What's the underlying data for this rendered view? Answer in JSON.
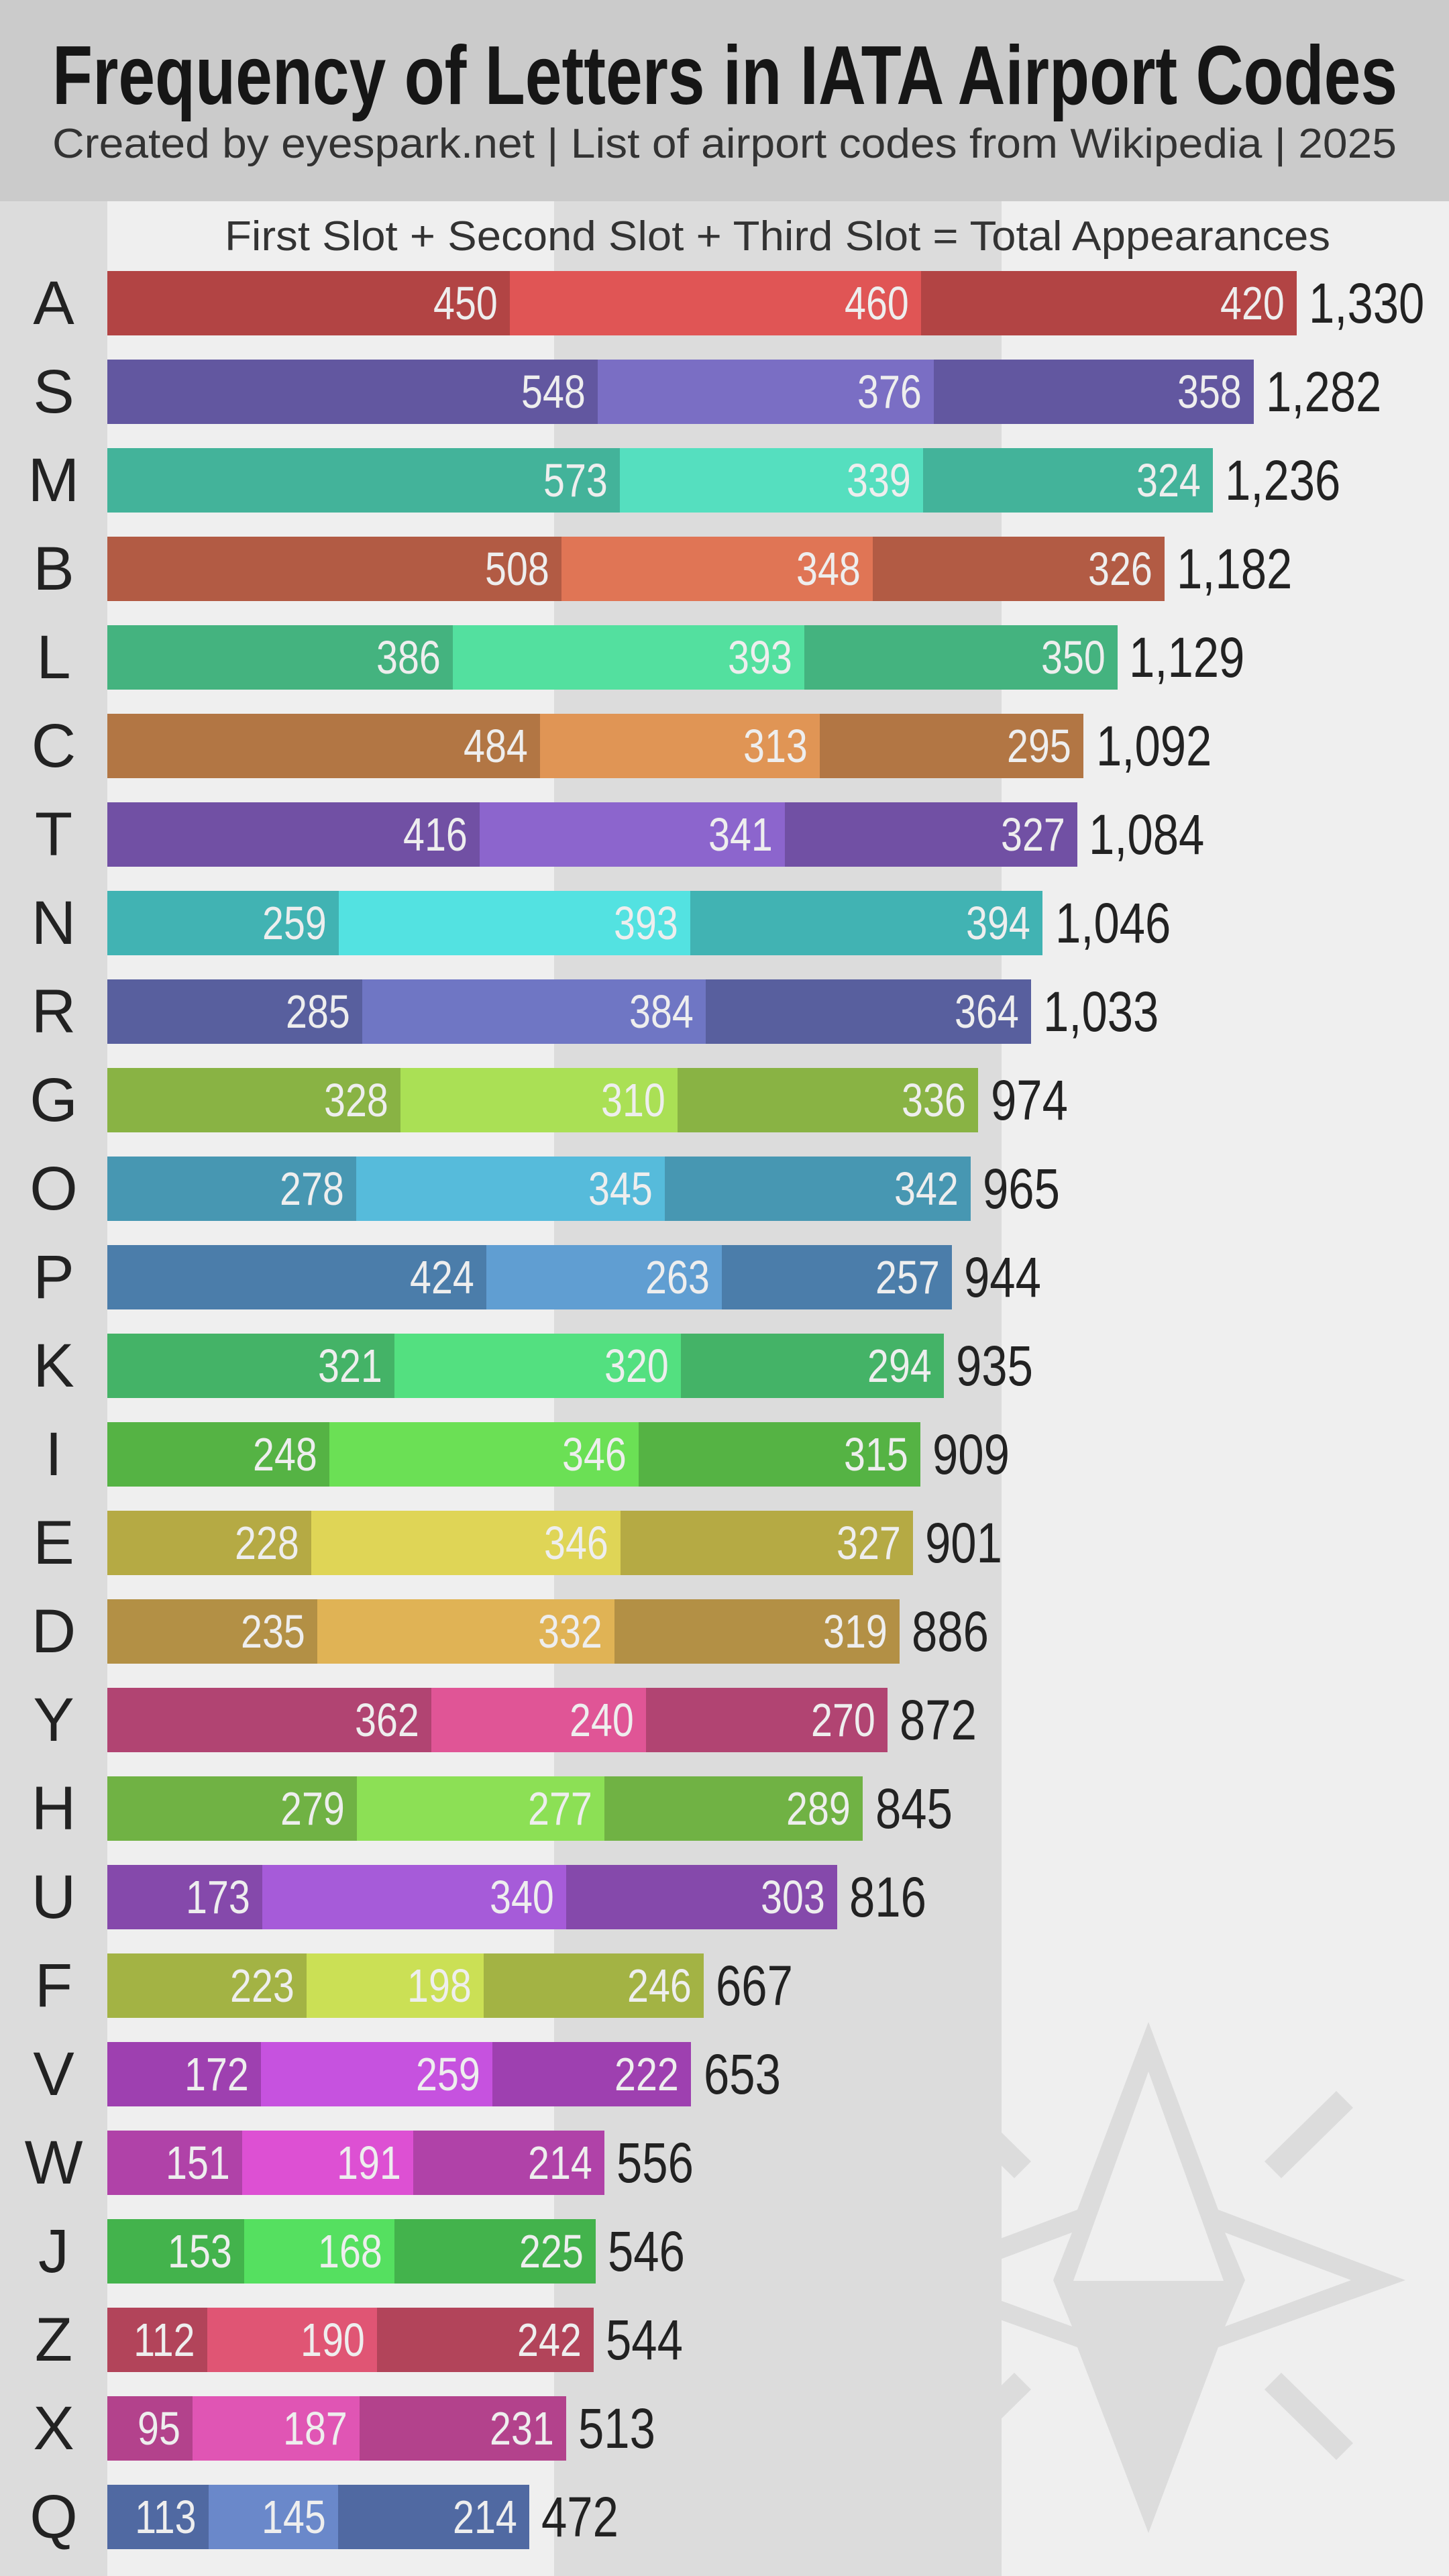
{
  "header": {
    "title": "Frequency of Letters in IATA Airport Codes",
    "subtitle": "Created by eyespark.net | List of airport codes from Wikipedia | 2025"
  },
  "legend": "First Slot + Second Slot + Third Slot = Total Appearances",
  "logo": "compass-star-icon",
  "chart_data": {
    "type": "bar",
    "orientation": "horizontal",
    "stacked": true,
    "title": "Frequency of Letters in IATA Airport Codes",
    "subtitle": "Created by eyespark.net | List of airport codes from Wikipedia | 2025",
    "legend_text": "First Slot + Second Slot + Third Slot = Total Appearances",
    "xlabel": "",
    "ylabel": "",
    "grid": false,
    "categories": [
      "A",
      "S",
      "M",
      "B",
      "L",
      "C",
      "T",
      "N",
      "R",
      "G",
      "O",
      "P",
      "K",
      "I",
      "E",
      "D",
      "Y",
      "H",
      "U",
      "F",
      "V",
      "W",
      "J",
      "Z",
      "X",
      "Q"
    ],
    "series": [
      {
        "name": "First Slot",
        "values": [
          450,
          548,
          573,
          508,
          386,
          484,
          416,
          259,
          285,
          328,
          278,
          424,
          321,
          248,
          228,
          235,
          362,
          279,
          173,
          223,
          172,
          151,
          153,
          112,
          95,
          113
        ]
      },
      {
        "name": "Second Slot",
        "values": [
          460,
          376,
          339,
          348,
          393,
          313,
          341,
          393,
          384,
          310,
          345,
          263,
          320,
          346,
          346,
          332,
          240,
          277,
          340,
          198,
          259,
          191,
          168,
          190,
          187,
          145
        ]
      },
      {
        "name": "Third Slot",
        "values": [
          420,
          358,
          324,
          326,
          350,
          295,
          327,
          394,
          364,
          336,
          342,
          257,
          294,
          315,
          327,
          319,
          270,
          289,
          303,
          246,
          222,
          214,
          225,
          242,
          231,
          214
        ]
      }
    ],
    "totals": [
      "1,330",
      "1,282",
      "1,236",
      "1,182",
      "1,129",
      "1,092",
      "1,084",
      "1,046",
      "1,033",
      "974",
      "965",
      "944",
      "935",
      "909",
      "901",
      "886",
      "872",
      "845",
      "816",
      "667",
      "653",
      "556",
      "546",
      "544",
      "513",
      "472"
    ],
    "colors": {
      "A": [
        "#b24444",
        "#e05555"
      ],
      "S": [
        "#6257a0",
        "#7a6ec4"
      ],
      "M": [
        "#43b39a",
        "#55dfbf"
      ],
      "B": [
        "#b25b44",
        "#e07555"
      ],
      "L": [
        "#44b37f",
        "#53e09f"
      ],
      "C": [
        "#b27644",
        "#e09555"
      ],
      "T": [
        "#7150a4",
        "#8c65cd"
      ],
      "N": [
        "#41b3b3",
        "#53e2e1"
      ],
      "R": [
        "#585f9e",
        "#6f76c4"
      ],
      "G": [
        "#89b344",
        "#aae055"
      ],
      "O": [
        "#4797b2",
        "#56bbdb"
      ],
      "P": [
        "#4b7daa",
        "#609ed2"
      ],
      "K": [
        "#44b367",
        "#53e080"
      ],
      "I": [
        "#55b344",
        "#6be055"
      ],
      "E": [
        "#b5aa44",
        "#dfd556"
      ],
      "D": [
        "#b39045",
        "#e0b355"
      ],
      "Y": [
        "#b14472",
        "#e05596"
      ],
      "H": [
        "#70b244",
        "#8ce055"
      ],
      "U": [
        "#8549ab",
        "#a65bd9"
      ],
      "F": [
        "#a3b344",
        "#cbe055"
      ],
      "V": [
        "#9e40b0",
        "#c652df"
      ],
      "W": [
        "#b042a8",
        "#dd50d3"
      ],
      "J": [
        "#43b34c",
        "#55e060"
      ],
      "Z": [
        "#b2445a",
        "#e05574"
      ],
      "X": [
        "#b3428c",
        "#e055b4"
      ],
      "Q": [
        "#5069a2",
        "#6a88ca"
      ]
    },
    "background_bands": [
      "#efefef",
      "#dcdcdc",
      "#efefef"
    ],
    "xlim": [
      0,
      1500
    ]
  }
}
